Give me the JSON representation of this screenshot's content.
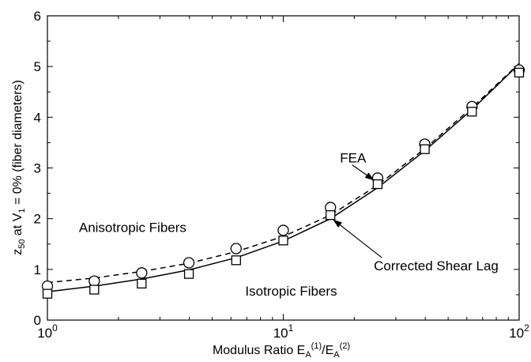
{
  "chart_data": {
    "type": "line",
    "xscale": "log",
    "xlim": [
      1,
      100
    ],
    "ylim": [
      0,
      6
    ],
    "x_ticks": [
      {
        "value": 1,
        "base": "10",
        "exp": "0"
      },
      {
        "value": 10,
        "base": "10",
        "exp": "1"
      },
      {
        "value": 100,
        "base": "10",
        "exp": "2"
      }
    ],
    "y_ticks": [
      {
        "value": 0,
        "label": "0"
      },
      {
        "value": 1,
        "label": "1"
      },
      {
        "value": 2,
        "label": "2"
      },
      {
        "value": 3,
        "label": "3"
      },
      {
        "value": 4,
        "label": "4"
      },
      {
        "value": 5,
        "label": "5"
      },
      {
        "value": 6,
        "label": "6"
      }
    ],
    "xlabel": {
      "main": "Modulus Ratio E",
      "sub1": "A",
      "sup1": "(1)",
      "slash": "/E",
      "sub2": "A",
      "sup2": "(2)"
    },
    "ylabel": {
      "z": "z",
      "zsub": "50",
      "mid": " at V",
      "vsub": "1",
      "rest": " = 0% (fiber diameters)"
    },
    "grid": false,
    "series": [
      {
        "style": "dashed-line",
        "x": [
          1,
          1.58,
          2.51,
          3.98,
          6.31,
          10,
          15.85,
          25.12,
          39.81,
          63.1,
          100
        ],
        "y": [
          0.74,
          0.83,
          0.96,
          1.12,
          1.35,
          1.65,
          2.07,
          2.66,
          3.38,
          4.19,
          5.06
        ]
      },
      {
        "style": "solid-line",
        "x": [
          1,
          1.58,
          2.51,
          3.98,
          6.31,
          10,
          15.85,
          25.12,
          39.81,
          63.1,
          100
        ],
        "y": [
          0.56,
          0.67,
          0.81,
          0.99,
          1.23,
          1.56,
          2.0,
          2.61,
          3.34,
          4.15,
          5.05
        ]
      },
      {
        "style": "circle-markers",
        "x": [
          1,
          1.58,
          2.51,
          3.98,
          6.31,
          10,
          15.85,
          25.12,
          39.81,
          63.1,
          100
        ],
        "y": [
          0.67,
          0.77,
          0.93,
          1.13,
          1.41,
          1.77,
          2.22,
          2.8,
          3.47,
          4.21,
          4.93
        ]
      },
      {
        "style": "square-markers",
        "x": [
          1,
          1.58,
          2.51,
          3.98,
          6.31,
          10,
          15.85,
          25.12,
          39.81,
          63.1,
          100
        ],
        "y": [
          0.52,
          0.6,
          0.72,
          0.91,
          1.18,
          1.57,
          2.07,
          2.68,
          3.37,
          4.11,
          4.88
        ]
      }
    ],
    "annotations": [
      {
        "text": "FEA",
        "label_at": [
          17.4,
          3.11
        ],
        "arrow_from": [
          19.6,
          3.06
        ],
        "arrow_to": [
          24.2,
          2.76
        ]
      },
      {
        "text": "Corrected Shear Lag",
        "label_at": [
          24.2,
          0.98
        ],
        "arrow_from": [
          26.2,
          1.23
        ],
        "arrow_to": [
          16.3,
          1.98
        ]
      },
      {
        "text": "Anisotropic Fibers",
        "label_at": [
          1.36,
          1.74
        ]
      },
      {
        "text": "Isotropic Fibers",
        "label_at": [
          6.9,
          0.48
        ]
      }
    ]
  }
}
